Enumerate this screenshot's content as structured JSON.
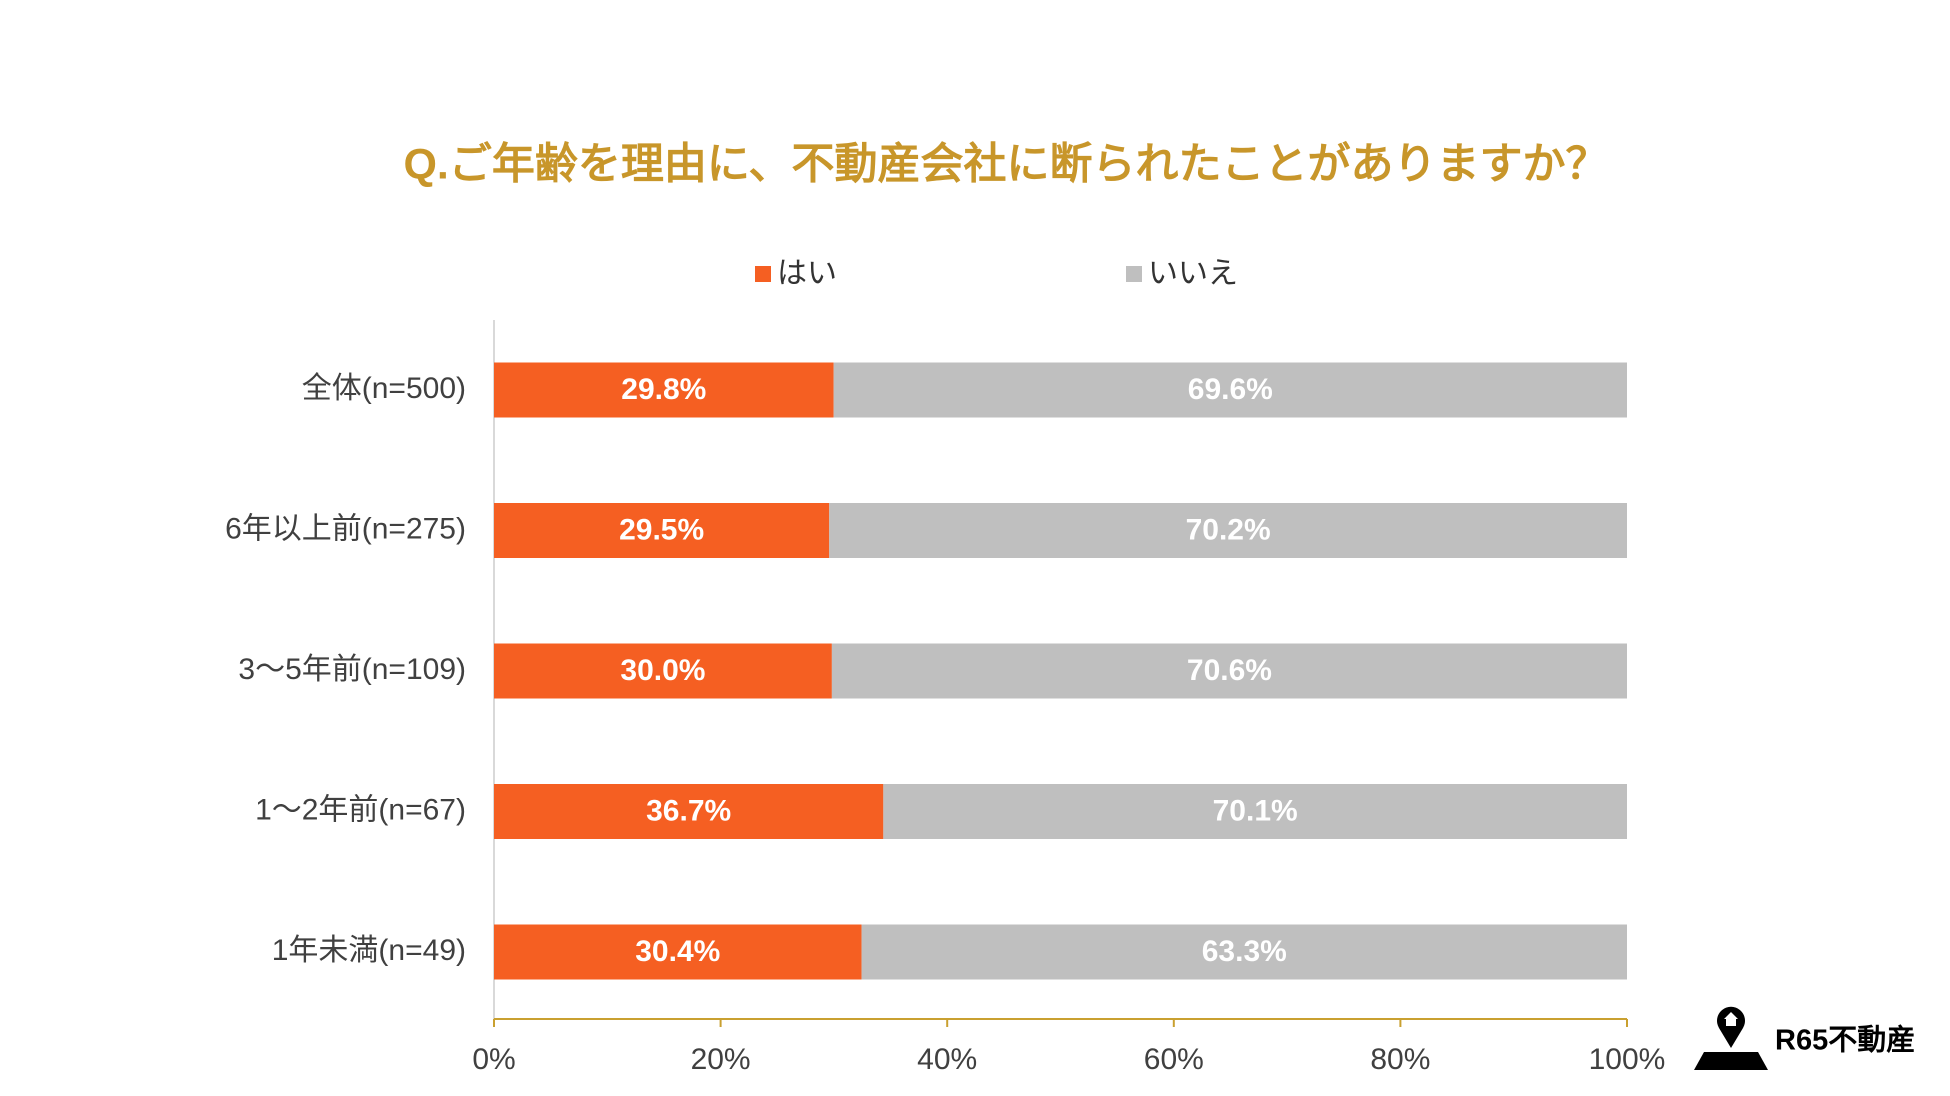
{
  "chart_data": {
    "type": "bar",
    "orientation": "horizontal",
    "stack": "percent",
    "title": "Q.ご年齢を理由に、不動産会社に断られたことがありますか？",
    "categories": [
      "全体(n=500)",
      "6年以上前(n=275)",
      "3〜5年前(n=109)",
      "1〜2年前(n=67)",
      "1年未満(n=49)"
    ],
    "series": [
      {
        "name": "はい",
        "color": "#f55f22",
        "values": [
          29.8,
          29.5,
          30.0,
          36.7,
          30.4
        ],
        "value_labels": [
          "29.8%",
          "29.5%",
          "30.0%",
          "36.7%",
          "30.4%"
        ]
      },
      {
        "name": "いいえ",
        "color": "#bfbfbf",
        "values": [
          69.6,
          70.2,
          70.6,
          70.1,
          63.3
        ],
        "value_labels": [
          "69.6%",
          "70.2%",
          "70.6%",
          "70.1%",
          "63.3%"
        ]
      }
    ],
    "xlim": [
      0,
      100
    ],
    "xticks": [
      {
        "value": 0,
        "label": "0%"
      },
      {
        "value": 20,
        "label": "20%"
      },
      {
        "value": 40,
        "label": "40%"
      },
      {
        "value": 60,
        "label": "60%"
      },
      {
        "value": 80,
        "label": "80%"
      },
      {
        "value": 100,
        "label": "100%"
      }
    ],
    "legend": "top",
    "logo": "R65不動産"
  }
}
